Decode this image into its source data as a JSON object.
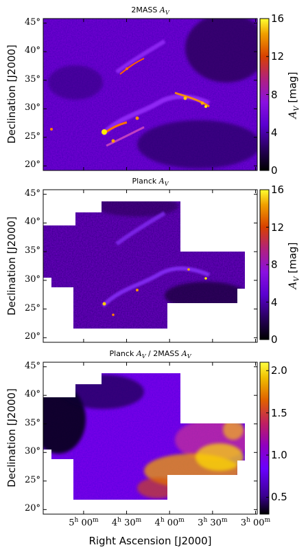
{
  "chart_data": [
    {
      "type": "heatmap",
      "title": "2MASS A_V",
      "title_text": "2MASS ",
      "title_math": "A",
      "title_sub": "V",
      "ylabel": "Declination [J2000]",
      "y_ticks": [
        "45°",
        "40°",
        "35°",
        "30°",
        "25°",
        "20°"
      ],
      "y_values": [
        45,
        40,
        35,
        30,
        25,
        20
      ],
      "ylim": [
        19.2,
        45.8
      ],
      "colorbar": {
        "label": "A_V [mag]",
        "ticks": [
          "0",
          "4",
          "8",
          "12",
          "16"
        ],
        "range": [
          0,
          16
        ]
      },
      "features": "filamentary dust clouds (Taurus-Perseus region) across full field"
    },
    {
      "type": "heatmap",
      "title": "Planck A_V",
      "title_text": "Planck ",
      "title_math": "A",
      "title_sub": "V",
      "ylabel": "Declination [J2000]",
      "y_ticks": [
        "45°",
        "40°",
        "35°",
        "30°",
        "25°",
        "20°"
      ],
      "y_values": [
        45,
        40,
        35,
        30,
        25,
        20
      ],
      "ylim": [
        19.2,
        45.8
      ],
      "colorbar": {
        "label": "A_V [mag]",
        "ticks": [
          "0",
          "4",
          "8",
          "12",
          "16"
        ],
        "range": [
          0,
          16
        ]
      },
      "features": "coverage restricted to irregular footprint"
    },
    {
      "type": "heatmap",
      "title": "Planck A_V / 2MASS A_V",
      "title_text": "Planck ",
      "title_math": "A",
      "title_sub": "V",
      "title_mid": " / 2MASS ",
      "ylabel": "Declination [J2000]",
      "y_ticks": [
        "45°",
        "40°",
        "35°",
        "30°",
        "25°",
        "20°"
      ],
      "y_values": [
        45,
        40,
        35,
        30,
        25,
        20
      ],
      "ylim": [
        19.2,
        45.8
      ],
      "xlabel": "Right Ascension [J2000]",
      "x_ticks": [
        {
          "h": "5",
          "m": "00"
        },
        {
          "h": "4",
          "m": "30"
        },
        {
          "h": "4",
          "m": "00"
        },
        {
          "h": "3",
          "m": "30"
        },
        {
          "h": "3",
          "m": "00"
        }
      ],
      "colorbar": {
        "ticks": [
          "0.5",
          "1.0",
          "1.5",
          "2.0"
        ],
        "tick_values": [
          0.5,
          1.0,
          1.5,
          2.0
        ],
        "range": [
          0.3,
          2.1
        ]
      },
      "features": "ratio map; higher ratios (yellow) in lower-right region"
    }
  ],
  "colors": {
    "background_dark": "#1a0033",
    "purple": "#5a00d0",
    "violet": "#8a2bff",
    "orange": "#e06000",
    "yellow": "#ffee00",
    "white": "#ffffff"
  }
}
